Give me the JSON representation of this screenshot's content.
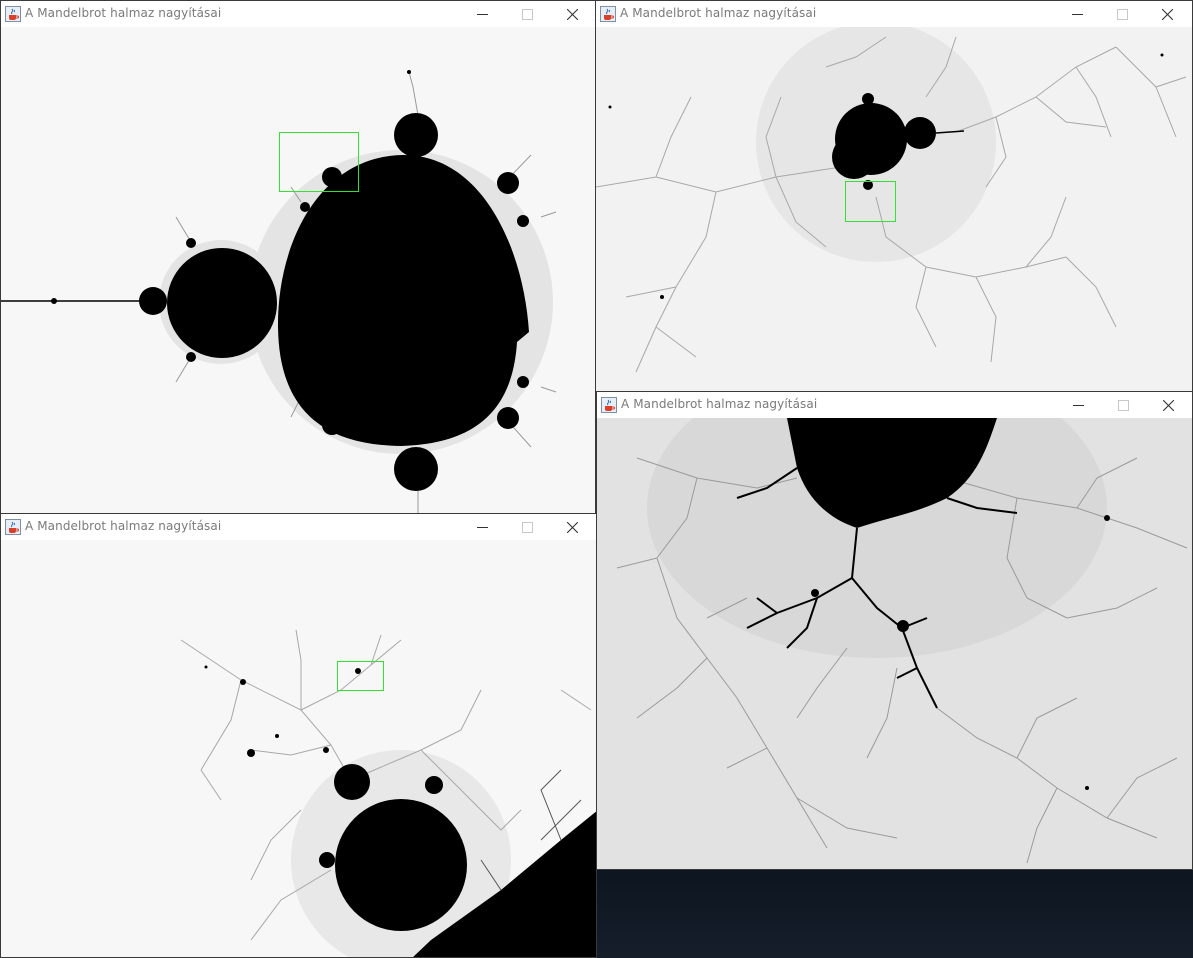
{
  "windows": [
    {
      "id": "w1",
      "title": "A Mandelbrot halmaz nagyításai",
      "zoom_box": true
    },
    {
      "id": "w2",
      "title": "A Mandelbrot halmaz nagyításai",
      "zoom_box": true
    },
    {
      "id": "w3",
      "title": "A Mandelbrot halmaz nagyításai",
      "zoom_box": true
    },
    {
      "id": "w4",
      "title": "A Mandelbrot halmaz nagyításai",
      "zoom_box": false
    }
  ],
  "icons": {
    "app": "java-coffee-cup-icon",
    "minimize": "minimize-icon",
    "maximize": "maximize-icon",
    "close": "close-icon"
  },
  "colors": {
    "set": "#000000",
    "background": "#f7f7f7",
    "zoom_box": "#33e033",
    "title_text": "#7a7a7a",
    "desktop": "#111820"
  }
}
